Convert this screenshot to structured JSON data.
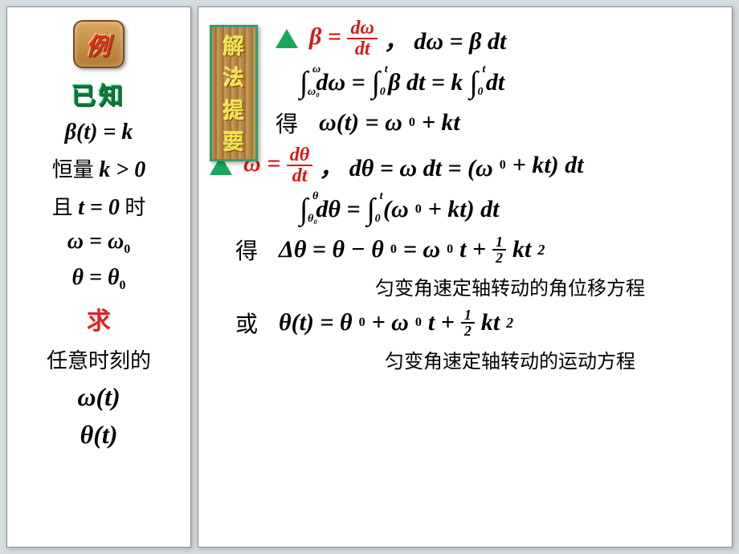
{
  "colors": {
    "page_bg": "#d5dcdf",
    "panel_bg": "#ffffff",
    "triangle": "#18a85a",
    "red_accent": "#d81818",
    "wood_border": "#2f9f6f",
    "wood_text": "#f2e04a",
    "known_green": "#0a7a3a"
  },
  "left": {
    "example_label": "例",
    "known_label": "已知",
    "beta_eq": "β(t) = k",
    "const_text_a": "恒量 ",
    "const_text_b": "k > 0",
    "and_t0_a": "且 ",
    "and_t0_b": "t = 0",
    "and_t0_c": " 时",
    "omega0": "ω = ω",
    "theta0": "θ = θ",
    "sub0": "0",
    "solve_label": "求",
    "anytime": "任意时刻的",
    "omega_t": "ω(t)",
    "theta_t": "θ(t)"
  },
  "right": {
    "solution_label_1": "解",
    "solution_label_2": "法",
    "solution_label_3": "提",
    "solution_label_4": "要",
    "eq1a": "β =",
    "eq1_frac_num": "dω",
    "eq1_frac_den": "dt",
    "eq1b": "，  dω = β dt",
    "eq2_hi1": "ω",
    "eq2_lo1": "ω₀",
    "eq2_a": "dω = ",
    "eq2_hi2": "t",
    "eq2_lo2": "0",
    "eq2_b": "β dt  = k",
    "eq2_c": " dt",
    "got": "得",
    "eq3": "ω(t) = ω",
    "eq3b": " + kt",
    "eq4a": "ω =",
    "eq4_frac_num": "dθ",
    "eq4_frac_den": "dt",
    "eq4b": "，  dθ = ω dt = (ω",
    "eq4c": " + kt) dt",
    "eq5_hi1": "θ",
    "eq5_lo1": "θ₀",
    "eq5_a": "dθ  = ",
    "eq5_hi2": "t",
    "eq5_lo2": "0",
    "eq5_b": "(ω",
    "eq5_c": " + kt) dt",
    "eq6a": "Δθ = θ − θ",
    "eq6b": " = ω",
    "eq6c": "t + ",
    "half_num": "1",
    "half_den": "2",
    "eq6d": "kt",
    "sq": "2",
    "note1": "匀变角速定轴转动的角位移方程",
    "or": "或",
    "eq7a": "θ(t) = θ",
    "eq7b": " + ω",
    "eq7c": "t + ",
    "eq7d": "kt",
    "note2": "匀变角速定轴转动的运动方程",
    "sub0": "0"
  }
}
